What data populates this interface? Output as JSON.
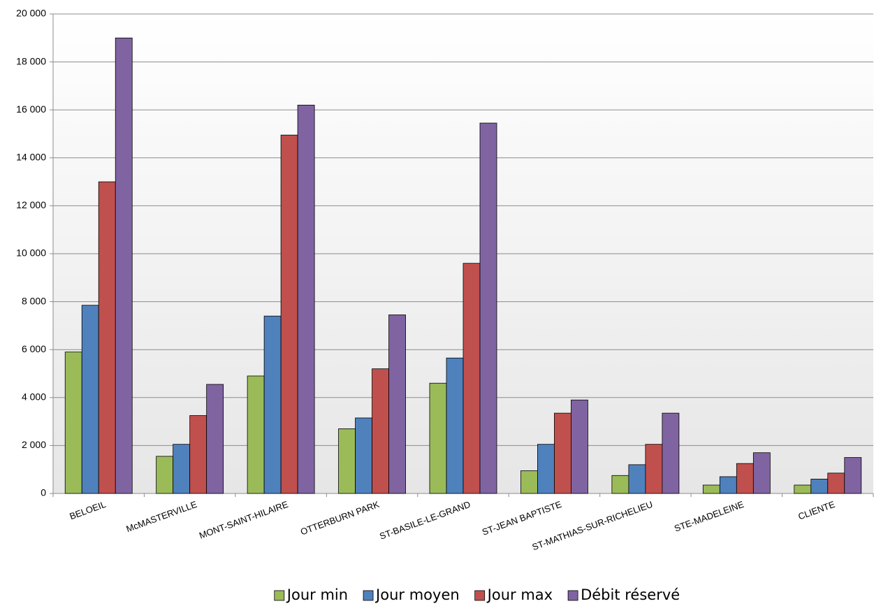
{
  "chart_data": {
    "type": "bar",
    "categories": [
      "BELOEIL",
      "McMASTERVILLE",
      "MONT-SAINT-HILAIRE",
      "OTTERBURN PARK",
      "ST-BASILE-LE-GRAND",
      "ST-JEAN BAPTISTE",
      "ST-MATHIAS-SUR-RICHELIEU",
      "STE-MADELEINE",
      "CLIENTE"
    ],
    "series": [
      {
        "name": "Jour min",
        "color": "#9bbb59",
        "values": [
          5900,
          1550,
          4900,
          2700,
          4600,
          950,
          750,
          350,
          350
        ]
      },
      {
        "name": "Jour moyen",
        "color": "#4f81bd",
        "values": [
          7850,
          2050,
          7400,
          3150,
          5650,
          2050,
          1200,
          700,
          600
        ]
      },
      {
        "name": "Jour max",
        "color": "#c0504d",
        "values": [
          13000,
          3250,
          14950,
          5200,
          9600,
          3350,
          2050,
          1250,
          850
        ]
      },
      {
        "name": "Débit réservé",
        "color": "#8064a2",
        "values": [
          19000,
          4550,
          16200,
          7450,
          15450,
          3900,
          3350,
          1700,
          1500
        ]
      }
    ],
    "ylim": [
      0,
      20000
    ],
    "yticks": [
      0,
      {
        "value": 2000,
        "label": "2 000"
      },
      {
        "value": 4000,
        "label": "4 000"
      },
      {
        "value": 6000,
        "label": "6 000"
      },
      {
        "value": 8000,
        "label": "8 000"
      },
      {
        "value": 10000,
        "label": "10 000"
      },
      {
        "value": 12000,
        "label": "12 000"
      },
      {
        "value": 14000,
        "label": "14 000"
      },
      {
        "value": 16000,
        "label": "16 000"
      },
      {
        "value": 18000,
        "label": "18 000"
      },
      {
        "value": 20000,
        "label": "20 000"
      }
    ],
    "grid": true,
    "legend": "bottom"
  }
}
